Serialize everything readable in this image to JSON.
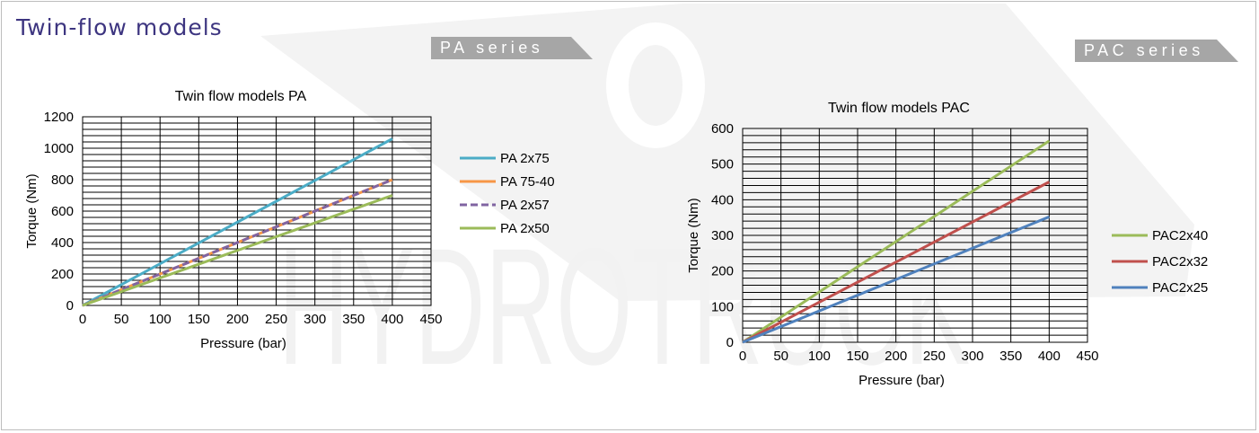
{
  "page": {
    "title": "Twin-flow models",
    "watermark": "HYDROTRUCK"
  },
  "tabs": {
    "pa": "PA series",
    "pac": "PAC series"
  },
  "colors": {
    "title": "#3d3580",
    "tab_bg": "#a6a6a6",
    "watermark": "#f2f2f2"
  },
  "chart_data": [
    {
      "type": "line",
      "title": "Twin flow models PA",
      "xlabel": "Pressure (bar)",
      "ylabel": "Torque (Nm)",
      "xlim": [
        0,
        450
      ],
      "ylim": [
        0,
        1200
      ],
      "x_ticks": [
        0,
        50,
        100,
        150,
        200,
        250,
        300,
        350,
        400,
        450
      ],
      "y_ticks": [
        0,
        200,
        400,
        600,
        800,
        1000,
        1200
      ],
      "grid": true,
      "legend_position": "right",
      "series": [
        {
          "name": "PA 2x75",
          "color": "#4bacc6",
          "dash": false,
          "x": [
            0,
            400
          ],
          "y": [
            0,
            1060
          ]
        },
        {
          "name": "PA 75-40",
          "color": "#f79646",
          "dash": false,
          "x": [
            0,
            400
          ],
          "y": [
            0,
            800
          ]
        },
        {
          "name": "PA 2x57",
          "color": "#8064a2",
          "dash": true,
          "x": [
            0,
            400
          ],
          "y": [
            0,
            800
          ]
        },
        {
          "name": "PA 2x50",
          "color": "#9bbb59",
          "dash": false,
          "x": [
            0,
            400
          ],
          "y": [
            0,
            700
          ]
        }
      ]
    },
    {
      "type": "line",
      "title": "Twin flow models PAC",
      "xlabel": "Pressure (bar)",
      "ylabel": "Torque (Nm)",
      "xlim": [
        0,
        450
      ],
      "ylim": [
        0,
        600
      ],
      "x_ticks": [
        0,
        50,
        100,
        150,
        200,
        250,
        300,
        350,
        400,
        450
      ],
      "y_ticks": [
        0,
        100,
        200,
        300,
        400,
        500,
        600
      ],
      "grid": true,
      "legend_position": "right",
      "series": [
        {
          "name": "PAC2x40",
          "color": "#9bbb59",
          "dash": false,
          "x": [
            0,
            400
          ],
          "y": [
            0,
            565
          ]
        },
        {
          "name": "PAC2x32",
          "color": "#c0504d",
          "dash": false,
          "x": [
            0,
            400
          ],
          "y": [
            0,
            450
          ]
        },
        {
          "name": "PAC2x25",
          "color": "#4f81bd",
          "dash": false,
          "x": [
            0,
            400
          ],
          "y": [
            0,
            352
          ]
        }
      ]
    }
  ]
}
